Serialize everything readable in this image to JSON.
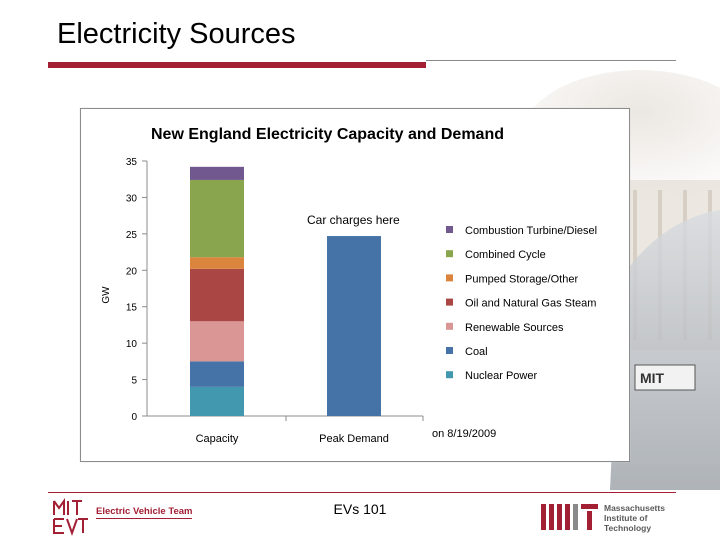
{
  "slide": {
    "title": "Electricity Sources",
    "footer_center": "EVs 101",
    "footer_left": "Electric Vehicle Team",
    "footer_right_lines": [
      "Massachusetts",
      "Institute of",
      "Technology"
    ],
    "accent_color": "#a31f34"
  },
  "chart_data": {
    "type": "bar",
    "stacked": true,
    "title": "New England  Electricity Capacity  and Demand",
    "xlabel": "",
    "ylabel": "GW",
    "ylim": [
      0,
      35
    ],
    "yticks": [
      0,
      5,
      10,
      15,
      20,
      25,
      30,
      35
    ],
    "grid": false,
    "categories": [
      "Capacity",
      "Peak Demand"
    ],
    "series": [
      {
        "name": "Nuclear Power",
        "color": "#4198af",
        "values": [
          4,
          0
        ]
      },
      {
        "name": "Coal",
        "color": "#4572a7",
        "values": [
          3.5,
          24.7
        ]
      },
      {
        "name": "Renewable Sources",
        "color": "#d99694",
        "values": [
          5.5,
          0
        ]
      },
      {
        "name": "Oil and Natural Gas Steam",
        "color": "#aa4643",
        "values": [
          7.2,
          0
        ]
      },
      {
        "name": "Pumped Storage/Other",
        "color": "#db843d",
        "values": [
          1.6,
          0
        ]
      },
      {
        "name": "Combined Cycle",
        "color": "#89a54e",
        "values": [
          10.6,
          0
        ]
      },
      {
        "name": "Combustion Turbine/Diesel",
        "color": "#71588f",
        "values": [
          1.8,
          0
        ]
      }
    ],
    "legend_position": "right",
    "annotations": [
      "Car charges here",
      "on 8/19/2009"
    ]
  }
}
